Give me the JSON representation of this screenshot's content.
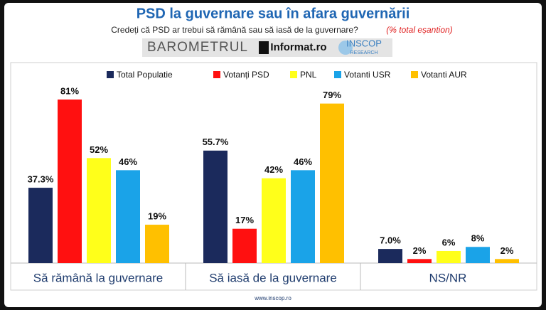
{
  "chart_data": {
    "type": "bar",
    "title": "PSD la guvernare sau în afara guvernării",
    "subtitle": "Credeți că PSD ar trebui să rămână sau să iasă de la guvernare?",
    "note": "(% total eșantion)",
    "logos": [
      "BAROMETRUL",
      "Informat.ro",
      "INSCOP",
      "RESEARCH"
    ],
    "footer": "www.inscop.ro",
    "categories": [
      "Să rămână la guvernare",
      "Să iasă de la guvernare",
      "NS/NR"
    ],
    "series": [
      {
        "name": "Total Populatie",
        "color": "#1b2a5c",
        "values": [
          37.3,
          55.7,
          7.0
        ],
        "value_labels": [
          "37.3%",
          "55.7%",
          "7.0%"
        ]
      },
      {
        "name": "Votanți PSD",
        "color": "#ff1010",
        "values": [
          81,
          17,
          2
        ],
        "value_labels": [
          "81%",
          "17%",
          "2%"
        ]
      },
      {
        "name": "PNL",
        "color": "#ffff1a",
        "values": [
          52,
          42,
          6
        ],
        "value_labels": [
          "52%",
          "42%",
          "6%"
        ]
      },
      {
        "name": "Votanti USR",
        "color": "#1aa3e8",
        "values": [
          46,
          46,
          8
        ],
        "value_labels": [
          "46%",
          "46%",
          "8%"
        ]
      },
      {
        "name": "Votanti AUR",
        "color": "#ffc000",
        "values": [
          19,
          79,
          2
        ],
        "value_labels": [
          "19%",
          "79%",
          "2%"
        ]
      }
    ],
    "legend": "top"
  }
}
